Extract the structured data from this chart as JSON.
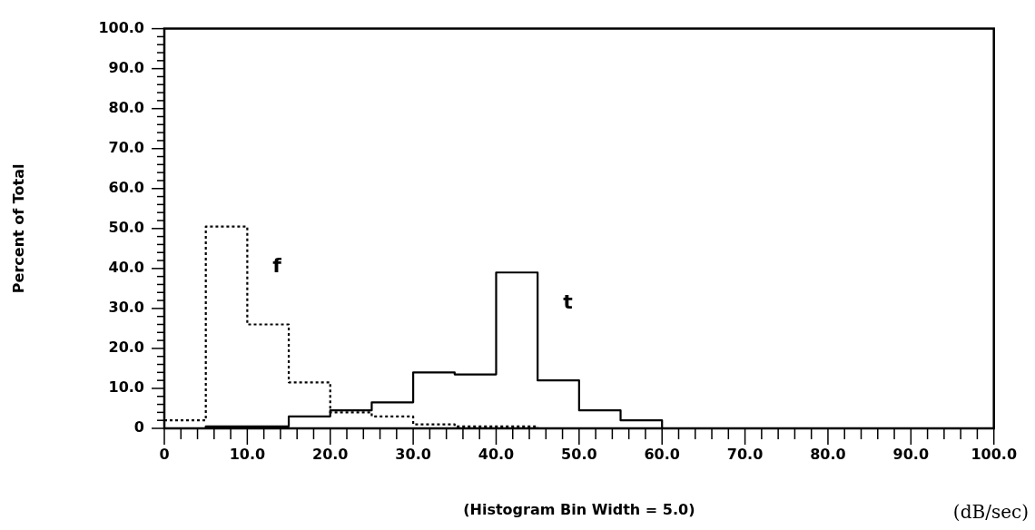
{
  "chart_data": {
    "type": "histogram",
    "ylabel": "Percent of Total",
    "xlabel": "(Histogram Bin Width = 5.0)",
    "annotations": [
      "(dB/sec)"
    ],
    "bins": [
      0,
      5,
      10,
      15,
      20,
      25,
      30,
      35,
      40,
      45,
      50,
      55,
      60,
      65,
      70,
      75,
      80,
      85,
      90,
      95,
      100
    ],
    "series": [
      {
        "name": "f",
        "color": "#000000",
        "line_style": "dotted",
        "values": [
          2,
          50.5,
          26,
          11.5,
          4,
          3,
          1,
          0.5,
          0.5,
          0,
          0,
          0,
          0,
          0,
          0,
          0,
          0,
          0,
          0,
          0
        ]
      },
      {
        "name": "t",
        "color": "#000000",
        "line_style": "solid",
        "values": [
          0,
          0.5,
          0.5,
          3,
          4.5,
          6.5,
          14,
          13.5,
          39,
          12,
          4.5,
          2,
          0,
          0,
          0,
          0,
          0,
          0,
          0,
          0
        ]
      }
    ],
    "xlim": [
      0,
      100
    ],
    "ylim": [
      0,
      100
    ],
    "xticks": [
      0,
      {
        "value": 2,
        "label": null
      },
      {
        "value": 4,
        "label": null
      },
      {
        "value": 6,
        "label": null
      },
      {
        "value": 8,
        "label": null
      },
      {
        "value": 10,
        "label": "10.0"
      },
      {
        "value": 12,
        "label": null
      },
      {
        "value": 14,
        "label": null
      },
      {
        "value": 16,
        "label": null
      },
      {
        "value": 18,
        "label": null
      },
      {
        "value": 20,
        "label": "20.0"
      },
      {
        "value": 22,
        "label": null
      },
      {
        "value": 24,
        "label": null
      },
      {
        "value": 26,
        "label": null
      },
      {
        "value": 28,
        "label": null
      },
      {
        "value": 30,
        "label": "30.0"
      },
      {
        "value": 32,
        "label": null
      },
      {
        "value": 34,
        "label": null
      },
      {
        "value": 36,
        "label": null
      },
      {
        "value": 38,
        "label": null
      },
      {
        "value": 40,
        "label": "40.0"
      },
      {
        "value": 42,
        "label": null
      },
      {
        "value": 44,
        "label": null
      },
      {
        "value": 46,
        "label": null
      },
      {
        "value": 48,
        "label": null
      },
      {
        "value": 50,
        "label": "50.0"
      },
      {
        "value": 52,
        "label": null
      },
      {
        "value": 54,
        "label": null
      },
      {
        "value": 56,
        "label": null
      },
      {
        "value": 58,
        "label": null
      },
      {
        "value": 60,
        "label": "60.0"
      },
      {
        "value": 62,
        "label": null
      },
      {
        "value": 64,
        "label": null
      },
      {
        "value": 66,
        "label": null
      },
      {
        "value": 68,
        "label": null
      },
      {
        "value": 70,
        "label": "70.0"
      },
      {
        "value": 72,
        "label": null
      },
      {
        "value": 74,
        "label": null
      },
      {
        "value": 76,
        "label": null
      },
      {
        "value": 78,
        "label": null
      },
      {
        "value": 80,
        "label": "80.0"
      },
      {
        "value": 82,
        "label": null
      },
      {
        "value": 84,
        "label": null
      },
      {
        "value": 86,
        "label": null
      },
      {
        "value": 88,
        "label": null
      },
      {
        "value": 90,
        "label": "90.0"
      },
      {
        "value": 92,
        "label": null
      },
      {
        "value": 94,
        "label": null
      },
      {
        "value": 96,
        "label": null
      },
      {
        "value": 98,
        "label": null
      },
      {
        "value": 100,
        "label": "100.0"
      }
    ],
    "yticks": [
      0,
      {
        "value": 2,
        "label": null
      },
      {
        "value": 4,
        "label": null
      },
      {
        "value": 6,
        "label": null
      },
      {
        "value": 8,
        "label": null
      },
      {
        "value": 10,
        "label": "10.0"
      },
      {
        "value": 12,
        "label": null
      },
      {
        "value": 14,
        "label": null
      },
      {
        "value": 16,
        "label": null
      },
      {
        "value": 18,
        "label": null
      },
      {
        "value": 20,
        "label": "20.0"
      },
      {
        "value": 22,
        "label": null
      },
      {
        "value": 24,
        "label": null
      },
      {
        "value": 26,
        "label": null
      },
      {
        "value": 28,
        "label": null
      },
      {
        "value": 30,
        "label": "30.0"
      },
      {
        "value": 32,
        "label": null
      },
      {
        "value": 34,
        "label": null
      },
      {
        "value": 36,
        "label": null
      },
      {
        "value": 38,
        "label": null
      },
      {
        "value": 40,
        "label": "40.0"
      },
      {
        "value": 42,
        "label": null
      },
      {
        "value": 44,
        "label": null
      },
      {
        "value": 46,
        "label": null
      },
      {
        "value": 48,
        "label": null
      },
      {
        "value": 50,
        "label": "50.0"
      },
      {
        "value": 52,
        "label": null
      },
      {
        "value": 54,
        "label": null
      },
      {
        "value": 56,
        "label": null
      },
      {
        "value": 58,
        "label": null
      },
      {
        "value": 60,
        "label": "60.0"
      },
      {
        "value": 62,
        "label": null
      },
      {
        "value": 64,
        "label": null
      },
      {
        "value": 66,
        "label": null
      },
      {
        "value": 68,
        "label": null
      },
      {
        "value": 70,
        "label": "70.0"
      },
      {
        "value": 72,
        "label": null
      },
      {
        "value": 74,
        "label": null
      },
      {
        "value": 76,
        "label": null
      },
      {
        "value": 78,
        "label": null
      },
      {
        "value": 80,
        "label": "80.0"
      },
      {
        "value": 82,
        "label": null
      },
      {
        "value": 84,
        "label": null
      },
      {
        "value": 86,
        "label": null
      },
      {
        "value": 88,
        "label": null
      },
      {
        "value": 90,
        "label": "90.0"
      },
      {
        "value": 92,
        "label": null
      },
      {
        "value": 94,
        "label": null
      },
      {
        "value": 96,
        "label": null
      },
      {
        "value": 98,
        "label": null
      },
      {
        "value": 100,
        "label": "100.0"
      }
    ],
    "grid": false,
    "legend": false
  }
}
